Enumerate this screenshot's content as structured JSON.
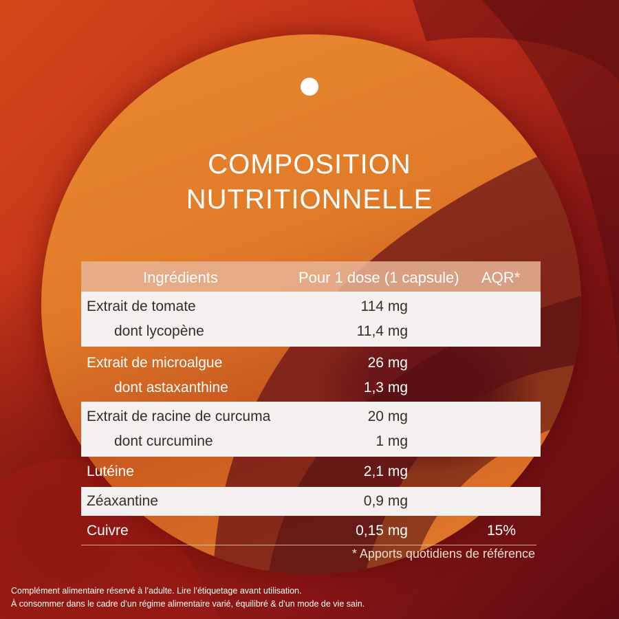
{
  "title": {
    "line1": "COMPOSITION",
    "line2": "NUTRITIONNELLE"
  },
  "table": {
    "headers": {
      "ingredients": "Ingrédients",
      "dose": "Pour 1 dose (1 capsule)",
      "aqr": "AQR*"
    },
    "rows": [
      {
        "name": "Extrait de tomate",
        "value": "114 mg"
      },
      {
        "name": "dont lycopène",
        "value": "11,4 mg"
      },
      {
        "name": "Extrait de microalgue",
        "value": "26 mg"
      },
      {
        "name": "dont astaxanthine",
        "value": "1,3 mg"
      },
      {
        "name": "Extrait de racine de curcuma",
        "value": "20 mg"
      },
      {
        "name": "dont curcumine",
        "value": "1 mg"
      },
      {
        "name": "Lutéine",
        "value": "2,1 mg"
      },
      {
        "name": "Zéaxantine",
        "value": "0,9 mg"
      },
      {
        "name": "Cuivre",
        "value": "0,15 mg",
        "aqr": "15%"
      }
    ]
  },
  "footnote": "* Apports quotidiens de référence",
  "legal": {
    "line1": "Complément alimentaire réservé à l’adulte. Lire l’étiquetage avant utilisation.",
    "line2": "À consommer dans le cadre d’un régime alimentaire varié, équilibré & d’un mode de vie sain."
  },
  "colors": {
    "background": "#c2301a",
    "disc": "#e07a28",
    "header_band": "#e8b496",
    "light_row": "#f3f0ef",
    "dark_accent": "#5e1318"
  }
}
